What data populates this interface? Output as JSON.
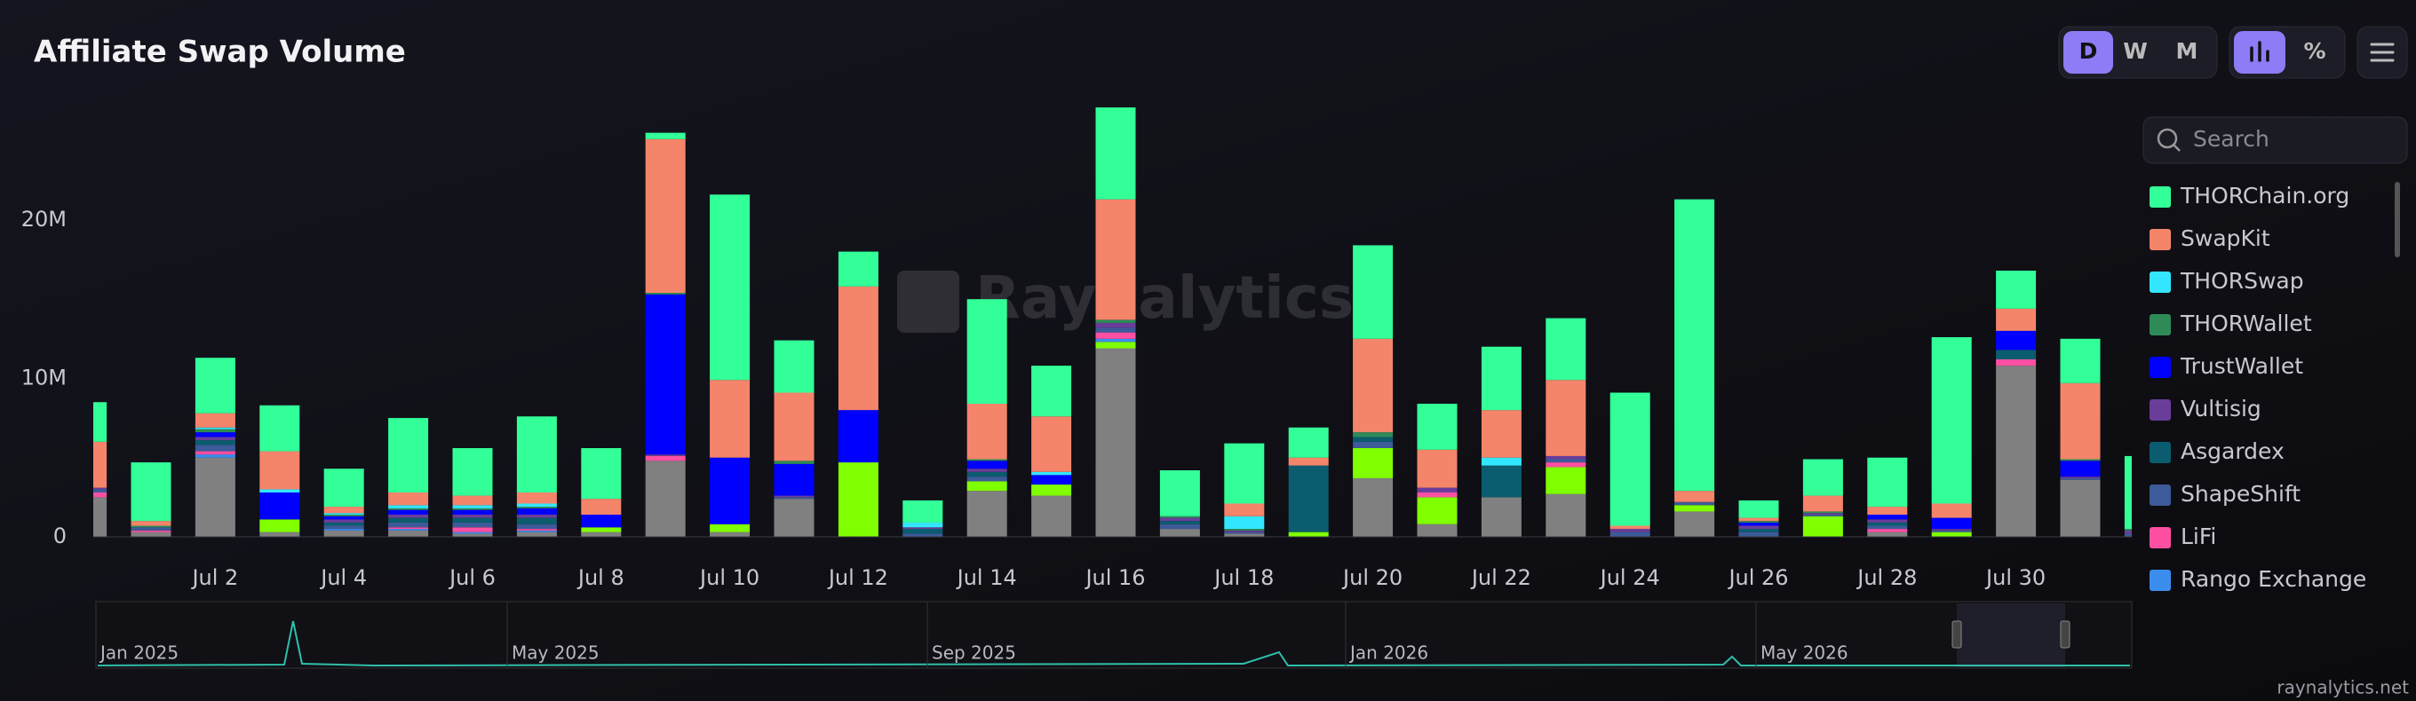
{
  "chart_data": {
    "type": "stacked_bar",
    "title": "Affiliate Swap Volume",
    "watermark": "Raynalytics",
    "credit": "raynalytics.net",
    "controls": [
      "D",
      "W",
      "M",
      "%"
    ],
    "search_placeholder": "Search",
    "navigator_labels": [
      "Jan 2025",
      "May 2025",
      "Sep 2025",
      "Jan 2026",
      "May 2026"
    ],
    "categories": [
      null,
      null,
      "Jul 2",
      null,
      "Jul 4",
      null,
      "Jul 6",
      null,
      "Jul 8",
      null,
      "Jul 10",
      null,
      "Jul 12",
      null,
      "Jul 14",
      null,
      "Jul 16",
      null,
      "Jul 18",
      null,
      "Jul 20",
      null,
      "Jul 22",
      null,
      "Jul 24",
      null,
      "Jul 26",
      null,
      "Jul 28",
      null,
      "Jul 30",
      null,
      null
    ],
    "ylim": [
      0,
      28000000
    ],
    "yticks": [
      0,
      {
        "value": 10000000,
        "label": "10M"
      },
      {
        "value": 20000000,
        "label": "20M"
      }
    ],
    "grid": false,
    "legend": "right",
    "series": [
      {
        "name": "THORChain.org",
        "color": "#33ff99",
        "values": [
          2500000.0,
          3700000.0,
          3500000.0,
          2900000.0,
          2400000.0,
          4700000.0,
          3000000.0,
          4800000.0,
          3200000.0,
          400000.0,
          11700000.0,
          3300000.0,
          2200000.0,
          1400000.0,
          6600000.0,
          3200000.0,
          5800000.0,
          2900000.0,
          3800000.0,
          1900000.0,
          5900000.0,
          2900000.0,
          4000000.0,
          3900000.0,
          8400000.0,
          18400000.0,
          1100000.0,
          2300000.0,
          3100000.0,
          10500000.0,
          2400000.0,
          2800000.0,
          4600000.0
        ]
      },
      {
        "name": "SwapKit",
        "color": "#f4846a",
        "values": [
          2900000.0,
          300000.0,
          900000.0,
          2400000.0,
          400000.0,
          800000.0,
          600000.0,
          700000.0,
          1000000.0,
          9700000.0,
          4900000.0,
          4300000.0,
          7800000.0,
          0,
          3500000.0,
          3500000.0,
          7600000.0,
          0,
          800000.0,
          500000.0,
          5900000.0,
          2400000.0,
          3000000.0,
          4800000.0,
          200000.0,
          700000.0,
          200000.0,
          1000000.0,
          500000.0,
          900000.0,
          1400000.0,
          4800000.0,
          0
        ]
      },
      {
        "name": "THORSwap",
        "color": "#33e6ff",
        "values": [
          0,
          0,
          100000.0,
          200000.0,
          100000.0,
          200000.0,
          200000.0,
          200000.0,
          0,
          0,
          0,
          0,
          0,
          300000.0,
          0,
          200000.0,
          0,
          0,
          800000.0,
          0,
          0,
          0,
          500000.0,
          0,
          0,
          0,
          0,
          0,
          0,
          0,
          0,
          0,
          0
        ]
      },
      {
        "name": "THORWallet",
        "color": "#2e8b57",
        "values": [
          0,
          100000.0,
          200000.0,
          0,
          100000.0,
          100000.0,
          100000.0,
          100000.0,
          0,
          100000.0,
          0,
          200000.0,
          0,
          0,
          100000.0,
          0,
          200000.0,
          100000.0,
          100000.0,
          0,
          300000.0,
          0,
          0,
          0,
          0,
          0,
          100000.0,
          100000.0,
          0,
          0,
          0,
          100000.0,
          100000.0
        ]
      },
      {
        "name": "TrustWallet",
        "color": "#0000ff",
        "values": [
          0,
          0,
          300000.0,
          1700000.0,
          200000.0,
          300000.0,
          300000.0,
          400000.0,
          800000.0,
          10100000.0,
          4200000.0,
          2000000.0,
          3300000.0,
          0,
          500000.0,
          600000.0,
          0,
          0,
          0,
          0,
          0,
          0,
          0,
          0,
          0,
          0,
          200000.0,
          0,
          300000.0,
          700000.0,
          1200000.0,
          1000000.0,
          0
        ]
      },
      {
        "name": "Vultisig",
        "color": "#6a3d9a",
        "values": [
          100000.0,
          0,
          200000.0,
          0,
          200000.0,
          200000.0,
          200000.0,
          200000.0,
          0,
          100000.0,
          0,
          100000.0,
          0,
          100000.0,
          200000.0,
          0,
          300000.0,
          200000.0,
          100000.0,
          0,
          0,
          300000.0,
          0,
          200000.0,
          200000.0,
          0,
          200000.0,
          100000.0,
          200000.0,
          100000.0,
          0,
          100000.0,
          200000.0
        ]
      },
      {
        "name": "Asgardex",
        "color": "#0b5c6e",
        "values": [
          0,
          0,
          300000.0,
          0,
          200000.0,
          300000.0,
          300000.0,
          400000.0,
          0,
          0,
          0,
          0,
          0,
          300000.0,
          300000.0,
          0,
          0,
          200000.0,
          0,
          4200000.0,
          300000.0,
          0,
          2000000.0,
          0,
          0,
          0,
          200000.0,
          0,
          200000.0,
          0,
          600000.0,
          0,
          0
        ]
      },
      {
        "name": "ShapeShift",
        "color": "#3d5a99",
        "values": [
          200000.0,
          200000.0,
          400000.0,
          0,
          200000.0,
          300000.0,
          300000.0,
          300000.0,
          0,
          0,
          0,
          100000.0,
          0,
          200000.0,
          300000.0,
          0,
          300000.0,
          300000.0,
          100000.0,
          0,
          400000.0,
          0,
          0,
          200000.0,
          300000.0,
          200000.0,
          300000.0,
          100000.0,
          200000.0,
          100000.0,
          0,
          100000.0,
          200000.0
        ]
      },
      {
        "name": "LiFi",
        "color": "#ff4fa3",
        "values": [
          300000.0,
          100000.0,
          200000.0,
          0,
          0,
          100000.0,
          300000.0,
          100000.0,
          0,
          300000.0,
          0,
          0,
          0,
          0,
          0,
          0,
          400000.0,
          0,
          0,
          0,
          0,
          300000.0,
          0,
          300000.0,
          0,
          0,
          0,
          0,
          200000.0,
          0,
          400000.0,
          0,
          0
        ]
      },
      {
        "name": "Rango Exchange",
        "color": "#3b8ded",
        "values": [
          0,
          0,
          200000.0,
          0,
          100000.0,
          100000.0,
          100000.0,
          100000.0,
          0,
          0,
          0,
          0,
          0,
          0,
          0,
          0,
          200000.0,
          0,
          0,
          0,
          0,
          0,
          0,
          0,
          0,
          0,
          0,
          0,
          0,
          0,
          0,
          0,
          0
        ]
      },
      {
        "color": "#80ff00",
        "values": [
          0,
          0,
          0,
          800000.0,
          0,
          0,
          0,
          0,
          300000.0,
          0,
          500000.0,
          0,
          4700000.0,
          0,
          600000.0,
          700000.0,
          400000.0,
          0,
          0,
          300000.0,
          1900000.0,
          1700000.0,
          0,
          1700000.0,
          0,
          400000.0,
          0,
          1300000.0,
          0,
          300000.0,
          0,
          0,
          0
        ]
      },
      {
        "color": "#808080",
        "values": [
          2500000.0,
          300000.0,
          5000000.0,
          300000.0,
          400000.0,
          400000.0,
          200000.0,
          300000.0,
          300000.0,
          4800000.0,
          300000.0,
          2400000.0,
          0,
          0,
          2900000.0,
          2600000.0,
          11900000.0,
          500000.0,
          200000.0,
          0,
          3700000.0,
          800000.0,
          2500000.0,
          2700000.0,
          0,
          1600000.0,
          0,
          0,
          300000.0,
          0,
          10800000.0,
          3600000.0,
          0
        ]
      }
    ]
  }
}
